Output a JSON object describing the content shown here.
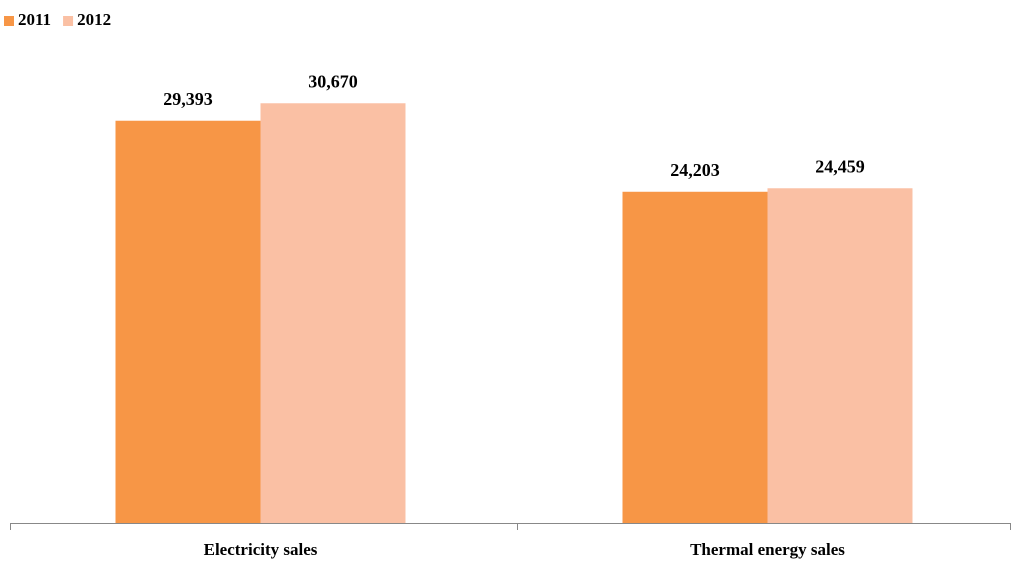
{
  "chart_data": {
    "type": "bar",
    "categories": [
      "Electricity sales",
      "Thermal energy sales"
    ],
    "series": [
      {
        "name": "2011",
        "color": "#f79646",
        "values": [
          29393,
          24203
        ],
        "value_labels": [
          "29,393",
          "24,203"
        ]
      },
      {
        "name": "2012",
        "color": "#fac0a4",
        "values": [
          30670,
          24459
        ],
        "value_labels": [
          "30,670",
          "24,459"
        ]
      }
    ],
    "ylim": [
      0,
      35000
    ],
    "legend": "top-left"
  }
}
